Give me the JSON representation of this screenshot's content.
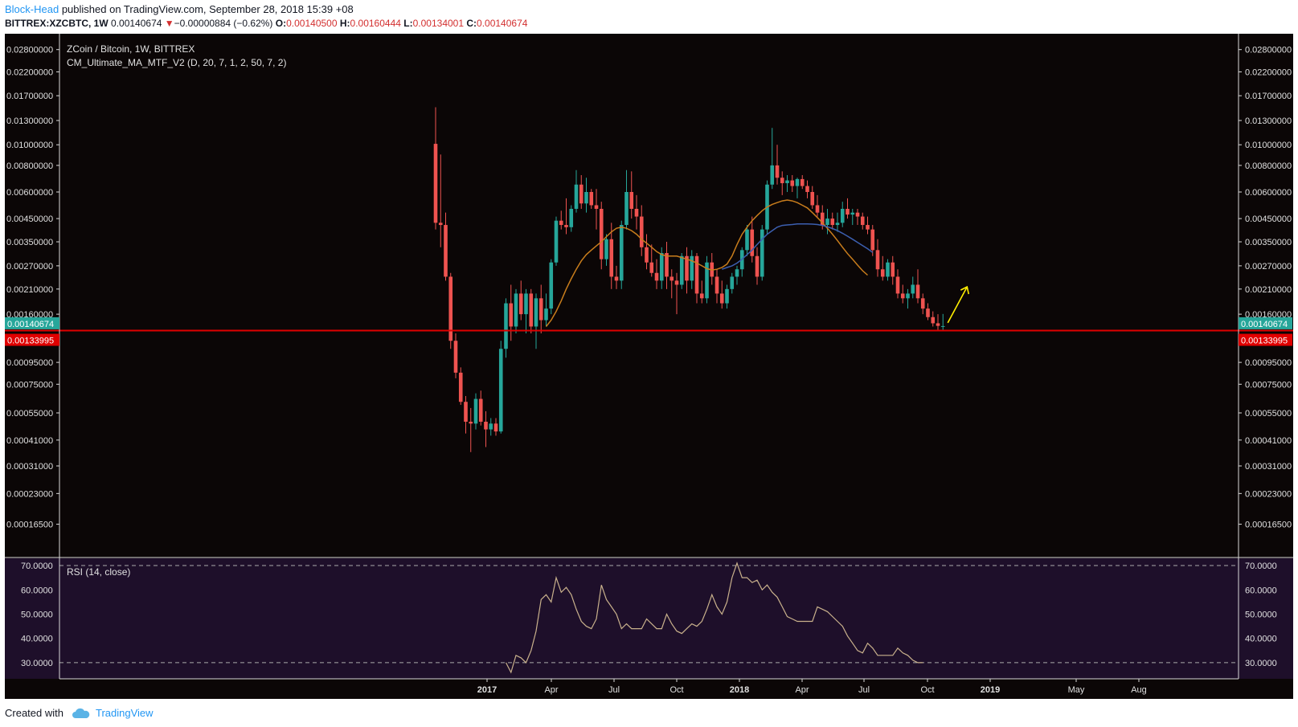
{
  "header": {
    "author": "Block-Head",
    "published_text": " published on TradingView.com, September 28, 2018 15:39 +08"
  },
  "symbol_bar": {
    "symbol": "BITTREX:XZCBTC, 1W",
    "last": "0.00140674",
    "change": "−0.00000884 (−0.62%)",
    "o_label": "O:",
    "o_value": "0.00140500",
    "h_label": "H:",
    "h_value": "0.00160444",
    "l_label": "L:",
    "l_value": "0.00134001",
    "c_label": "C:",
    "c_value": "0.00140674"
  },
  "footer": {
    "created_text": "Created with",
    "brand": "TradingView",
    "brand_icon": "cloud-icon"
  },
  "colors": {
    "bull": "#26a69a",
    "bear": "#ef5350",
    "support": "#e00000",
    "ma_fast": "#c97d1c",
    "ma_slow": "#3c5fb0",
    "rsi_line": "#c9b18c",
    "rsi_band": "#1e0f2a",
    "arrow": "#ffee00",
    "bg": "#0b0606"
  },
  "chart_data": [
    {
      "type": "candlestick",
      "title": "ZCoin / Bitcoin, 1W, BITTREX",
      "indicator_label": "CM_Ultimate_MA_MTF_V2 (D, 20, 7, 1, 2, 50, 7, 2)",
      "y_scale": "log",
      "ylim": [
        0.00013,
        0.031
      ],
      "y_ticks": [
        "0.02800000",
        "0.02200000",
        "0.01700000",
        "0.01300000",
        "0.01000000",
        "0.00800000",
        "0.00600000",
        "0.00450000",
        "0.00350000",
        "0.00270000",
        "0.00210000",
        "0.00160000",
        "0.00095000",
        "0.00075000",
        "0.00055000",
        "0.00041000",
        "0.00031000",
        "0.00023000",
        "0.00016500"
      ],
      "last_price_label": "0.00140674",
      "support_label": "0.00133995",
      "support_level": 0.00133995,
      "x_ticks": [
        "2017",
        "Apr",
        "Jul",
        "Oct",
        "2018",
        "Apr",
        "Jul",
        "Oct",
        "2019",
        "May",
        "Aug"
      ],
      "candles": [
        {
          "o": 0.0101,
          "h": 0.015,
          "l": 0.004,
          "c": 0.0043
        },
        {
          "o": 0.0043,
          "h": 0.009,
          "l": 0.0033,
          "c": 0.0042
        },
        {
          "o": 0.0042,
          "h": 0.0048,
          "l": 0.0023,
          "c": 0.0024
        },
        {
          "o": 0.0024,
          "h": 0.0025,
          "l": 0.0011,
          "c": 0.0012
        },
        {
          "o": 0.0012,
          "h": 0.0013,
          "l": 0.0008,
          "c": 0.00085
        },
        {
          "o": 0.00085,
          "h": 0.0009,
          "l": 0.0006,
          "c": 0.00062
        },
        {
          "o": 0.00062,
          "h": 0.00066,
          "l": 0.00044,
          "c": 0.0005
        },
        {
          "o": 0.0005,
          "h": 0.00058,
          "l": 0.00036,
          "c": 0.00049
        },
        {
          "o": 0.00049,
          "h": 0.00068,
          "l": 0.00046,
          "c": 0.00064
        },
        {
          "o": 0.00064,
          "h": 0.0007,
          "l": 0.00048,
          "c": 0.0005
        },
        {
          "o": 0.0005,
          "h": 0.00056,
          "l": 0.00038,
          "c": 0.00046
        },
        {
          "o": 0.00046,
          "h": 0.00052,
          "l": 0.00043,
          "c": 0.00049
        },
        {
          "o": 0.00049,
          "h": 0.00052,
          "l": 0.00043,
          "c": 0.00045
        },
        {
          "o": 0.00045,
          "h": 0.0012,
          "l": 0.00044,
          "c": 0.0011
        },
        {
          "o": 0.0011,
          "h": 0.0019,
          "l": 0.001,
          "c": 0.0018
        },
        {
          "o": 0.0018,
          "h": 0.0022,
          "l": 0.0012,
          "c": 0.0014
        },
        {
          "o": 0.0014,
          "h": 0.0021,
          "l": 0.0013,
          "c": 0.002
        },
        {
          "o": 0.002,
          "h": 0.0023,
          "l": 0.0015,
          "c": 0.0016
        },
        {
          "o": 0.0016,
          "h": 0.0021,
          "l": 0.0013,
          "c": 0.002
        },
        {
          "o": 0.002,
          "h": 0.0021,
          "l": 0.0013,
          "c": 0.0014
        },
        {
          "o": 0.0014,
          "h": 0.002,
          "l": 0.0011,
          "c": 0.0019
        },
        {
          "o": 0.0019,
          "h": 0.0022,
          "l": 0.0013,
          "c": 0.0015
        },
        {
          "o": 0.0015,
          "h": 0.002,
          "l": 0.0014,
          "c": 0.0017
        },
        {
          "o": 0.0017,
          "h": 0.0029,
          "l": 0.0016,
          "c": 0.0028
        },
        {
          "o": 0.0028,
          "h": 0.0046,
          "l": 0.0027,
          "c": 0.0044
        },
        {
          "o": 0.0044,
          "h": 0.0049,
          "l": 0.004,
          "c": 0.0042
        },
        {
          "o": 0.0042,
          "h": 0.0056,
          "l": 0.0038,
          "c": 0.0041
        },
        {
          "o": 0.0041,
          "h": 0.0052,
          "l": 0.0039,
          "c": 0.005
        },
        {
          "o": 0.005,
          "h": 0.0076,
          "l": 0.0048,
          "c": 0.0065
        },
        {
          "o": 0.0065,
          "h": 0.0072,
          "l": 0.005,
          "c": 0.0053
        },
        {
          "o": 0.0053,
          "h": 0.007,
          "l": 0.0048,
          "c": 0.006
        },
        {
          "o": 0.006,
          "h": 0.0062,
          "l": 0.005,
          "c": 0.0052
        },
        {
          "o": 0.0052,
          "h": 0.0062,
          "l": 0.004,
          "c": 0.005
        },
        {
          "o": 0.005,
          "h": 0.0054,
          "l": 0.0026,
          "c": 0.0029
        },
        {
          "o": 0.0029,
          "h": 0.0038,
          "l": 0.0027,
          "c": 0.0036
        },
        {
          "o": 0.0036,
          "h": 0.0043,
          "l": 0.0021,
          "c": 0.0024
        },
        {
          "o": 0.0024,
          "h": 0.0027,
          "l": 0.0021,
          "c": 0.0023
        },
        {
          "o": 0.0023,
          "h": 0.0044,
          "l": 0.0021,
          "c": 0.0042
        },
        {
          "o": 0.0042,
          "h": 0.0076,
          "l": 0.004,
          "c": 0.006
        },
        {
          "o": 0.006,
          "h": 0.0075,
          "l": 0.0045,
          "c": 0.005
        },
        {
          "o": 0.005,
          "h": 0.0058,
          "l": 0.004,
          "c": 0.0046
        },
        {
          "o": 0.0046,
          "h": 0.0052,
          "l": 0.003,
          "c": 0.0033
        },
        {
          "o": 0.0033,
          "h": 0.0038,
          "l": 0.0026,
          "c": 0.0028
        },
        {
          "o": 0.0028,
          "h": 0.0034,
          "l": 0.0024,
          "c": 0.0025
        },
        {
          "o": 0.0025,
          "h": 0.0029,
          "l": 0.0021,
          "c": 0.0023
        },
        {
          "o": 0.0023,
          "h": 0.0033,
          "l": 0.0021,
          "c": 0.0031
        },
        {
          "o": 0.0031,
          "h": 0.0035,
          "l": 0.0021,
          "c": 0.0024
        },
        {
          "o": 0.0024,
          "h": 0.0026,
          "l": 0.0019,
          "c": 0.0023
        },
        {
          "o": 0.0023,
          "h": 0.0025,
          "l": 0.0016,
          "c": 0.0022
        },
        {
          "o": 0.0022,
          "h": 0.0031,
          "l": 0.0021,
          "c": 0.003
        },
        {
          "o": 0.003,
          "h": 0.0033,
          "l": 0.002,
          "c": 0.0023
        },
        {
          "o": 0.0023,
          "h": 0.0032,
          "l": 0.0021,
          "c": 0.003
        },
        {
          "o": 0.003,
          "h": 0.0031,
          "l": 0.0018,
          "c": 0.002
        },
        {
          "o": 0.002,
          "h": 0.0023,
          "l": 0.0018,
          "c": 0.0019
        },
        {
          "o": 0.0019,
          "h": 0.003,
          "l": 0.0018,
          "c": 0.0028
        },
        {
          "o": 0.0028,
          "h": 0.0031,
          "l": 0.0022,
          "c": 0.0024
        },
        {
          "o": 0.0024,
          "h": 0.0026,
          "l": 0.0018,
          "c": 0.002
        },
        {
          "o": 0.002,
          "h": 0.0023,
          "l": 0.0017,
          "c": 0.0018
        },
        {
          "o": 0.0018,
          "h": 0.0022,
          "l": 0.0017,
          "c": 0.0021
        },
        {
          "o": 0.0021,
          "h": 0.0025,
          "l": 0.002,
          "c": 0.0024
        },
        {
          "o": 0.0024,
          "h": 0.0027,
          "l": 0.0022,
          "c": 0.0026
        },
        {
          "o": 0.0026,
          "h": 0.0033,
          "l": 0.0024,
          "c": 0.0032
        },
        {
          "o": 0.0032,
          "h": 0.0042,
          "l": 0.003,
          "c": 0.004
        },
        {
          "o": 0.004,
          "h": 0.0046,
          "l": 0.0028,
          "c": 0.003
        },
        {
          "o": 0.003,
          "h": 0.0033,
          "l": 0.0022,
          "c": 0.0024
        },
        {
          "o": 0.0024,
          "h": 0.0042,
          "l": 0.0023,
          "c": 0.004
        },
        {
          "o": 0.004,
          "h": 0.0068,
          "l": 0.0038,
          "c": 0.0065
        },
        {
          "o": 0.0065,
          "h": 0.012,
          "l": 0.0062,
          "c": 0.008
        },
        {
          "o": 0.008,
          "h": 0.01,
          "l": 0.0065,
          "c": 0.007
        },
        {
          "o": 0.007,
          "h": 0.0075,
          "l": 0.0058,
          "c": 0.0066
        },
        {
          "o": 0.0066,
          "h": 0.0072,
          "l": 0.006,
          "c": 0.0068
        },
        {
          "o": 0.0068,
          "h": 0.0072,
          "l": 0.006,
          "c": 0.0064
        },
        {
          "o": 0.0064,
          "h": 0.007,
          "l": 0.0056,
          "c": 0.0069
        },
        {
          "o": 0.0069,
          "h": 0.0072,
          "l": 0.0062,
          "c": 0.0064
        },
        {
          "o": 0.0064,
          "h": 0.0068,
          "l": 0.0056,
          "c": 0.006
        },
        {
          "o": 0.006,
          "h": 0.0064,
          "l": 0.005,
          "c": 0.0052
        },
        {
          "o": 0.0052,
          "h": 0.0058,
          "l": 0.0046,
          "c": 0.0048
        },
        {
          "o": 0.0048,
          "h": 0.0052,
          "l": 0.004,
          "c": 0.0042
        },
        {
          "o": 0.0042,
          "h": 0.005,
          "l": 0.0038,
          "c": 0.0045
        },
        {
          "o": 0.0045,
          "h": 0.0048,
          "l": 0.004,
          "c": 0.0042
        },
        {
          "o": 0.0042,
          "h": 0.0048,
          "l": 0.0039,
          "c": 0.0043
        },
        {
          "o": 0.0043,
          "h": 0.0054,
          "l": 0.0041,
          "c": 0.005
        },
        {
          "o": 0.005,
          "h": 0.0056,
          "l": 0.0045,
          "c": 0.0047
        },
        {
          "o": 0.0047,
          "h": 0.005,
          "l": 0.0042,
          "c": 0.0048
        },
        {
          "o": 0.0048,
          "h": 0.005,
          "l": 0.0042,
          "c": 0.0046
        },
        {
          "o": 0.0046,
          "h": 0.0048,
          "l": 0.004,
          "c": 0.0042
        },
        {
          "o": 0.0042,
          "h": 0.0046,
          "l": 0.0038,
          "c": 0.004
        },
        {
          "o": 0.004,
          "h": 0.0042,
          "l": 0.003,
          "c": 0.0032
        },
        {
          "o": 0.0032,
          "h": 0.0036,
          "l": 0.0024,
          "c": 0.0026
        },
        {
          "o": 0.0026,
          "h": 0.003,
          "l": 0.0023,
          "c": 0.0024
        },
        {
          "o": 0.0024,
          "h": 0.0029,
          "l": 0.0023,
          "c": 0.0028
        },
        {
          "o": 0.0028,
          "h": 0.003,
          "l": 0.0022,
          "c": 0.0024
        },
        {
          "o": 0.0024,
          "h": 0.0026,
          "l": 0.0019,
          "c": 0.002
        },
        {
          "o": 0.002,
          "h": 0.0022,
          "l": 0.0018,
          "c": 0.0019
        },
        {
          "o": 0.0019,
          "h": 0.0021,
          "l": 0.0017,
          "c": 0.002
        },
        {
          "o": 0.002,
          "h": 0.0024,
          "l": 0.0019,
          "c": 0.0022
        },
        {
          "o": 0.0022,
          "h": 0.0026,
          "l": 0.0018,
          "c": 0.0019
        },
        {
          "o": 0.0019,
          "h": 0.002,
          "l": 0.0016,
          "c": 0.0017
        },
        {
          "o": 0.0017,
          "h": 0.0018,
          "l": 0.0015,
          "c": 0.00155
        },
        {
          "o": 0.00155,
          "h": 0.00165,
          "l": 0.0014,
          "c": 0.00145
        },
        {
          "o": 0.00145,
          "h": 0.0016,
          "l": 0.00135,
          "c": 0.00141
        },
        {
          "o": 0.001405,
          "h": 0.001604,
          "l": 0.00134,
          "c": 0.001407
        }
      ],
      "ma_fast": {
        "start_index": 22,
        "values": [
          0.0014,
          0.0015,
          0.00165,
          0.00185,
          0.0021,
          0.00235,
          0.0026,
          0.00285,
          0.00305,
          0.0032,
          0.00335,
          0.0035,
          0.0037,
          0.0039,
          0.00405,
          0.0041,
          0.00405,
          0.00395,
          0.0038,
          0.0036,
          0.00345,
          0.0033,
          0.00315,
          0.00305,
          0.003,
          0.003,
          0.003,
          0.00295,
          0.0029,
          0.00285,
          0.00278,
          0.0027,
          0.00262,
          0.00258,
          0.0026,
          0.00265,
          0.00275,
          0.003,
          0.0034,
          0.0038,
          0.0041,
          0.0044,
          0.00465,
          0.0049,
          0.0051,
          0.00525,
          0.00535,
          0.00545,
          0.0055,
          0.00545,
          0.00535,
          0.0052,
          0.00505,
          0.0048,
          0.00455,
          0.0043,
          0.00405,
          0.0038,
          0.00355,
          0.0033,
          0.00308,
          0.0029,
          0.00272,
          0.00256,
          0.00244
        ]
      },
      "ma_slow": {
        "start_index": 57,
        "values": [
          0.0026,
          0.00265,
          0.0027,
          0.00278,
          0.0029,
          0.00305,
          0.0032,
          0.0034,
          0.0036,
          0.0038,
          0.00395,
          0.0041,
          0.00418,
          0.0042,
          0.00422,
          0.00425,
          0.00425,
          0.00425,
          0.00424,
          0.00422,
          0.00418,
          0.00412,
          0.00404,
          0.00395,
          0.00384,
          0.00372,
          0.0036,
          0.00348,
          0.00336,
          0.00325,
          0.00312
        ]
      },
      "annotation": "arrow-up"
    },
    {
      "type": "line",
      "title": "RSI (14, close)",
      "ylim": [
        25,
        72
      ],
      "y_ticks": [
        "70.0000",
        "60.0000",
        "50.0000",
        "40.0000",
        "30.0000"
      ],
      "bands": [
        70,
        30
      ],
      "start_index": 14,
      "values": [
        30,
        26,
        33,
        32,
        30,
        35,
        43,
        56,
        58,
        55,
        65,
        59,
        61,
        58,
        52,
        47,
        45,
        44,
        48,
        62,
        56,
        53,
        50,
        44,
        46,
        44,
        44,
        44,
        48,
        46,
        44,
        44,
        50,
        46,
        43,
        42,
        44,
        46,
        45,
        47,
        52,
        58,
        53,
        50,
        55,
        65,
        71,
        65,
        65,
        63,
        64,
        60,
        62,
        59,
        57,
        53,
        49,
        48,
        47,
        47,
        47,
        47,
        53,
        52,
        51,
        49,
        47,
        45,
        41,
        38,
        35,
        34,
        38,
        36,
        33,
        33,
        33,
        33,
        36,
        34,
        33,
        31,
        30,
        30
      ]
    }
  ]
}
